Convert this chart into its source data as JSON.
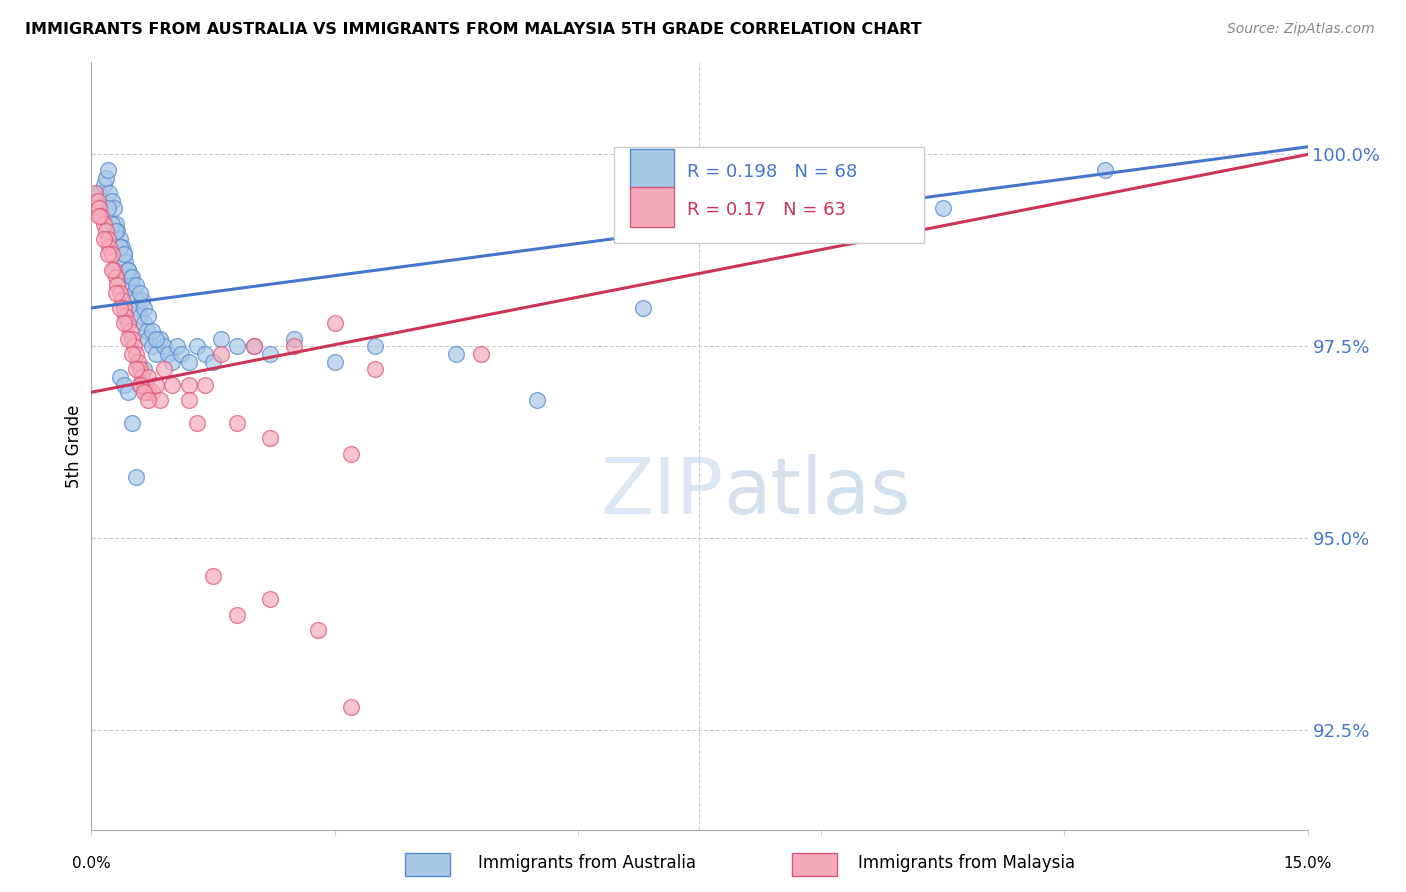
{
  "title": "IMMIGRANTS FROM AUSTRALIA VS IMMIGRANTS FROM MALAYSIA 5TH GRADE CORRELATION CHART",
  "source": "Source: ZipAtlas.com",
  "ylabel": "5th Grade",
  "yticks": [
    92.5,
    95.0,
    97.5,
    100.0
  ],
  "ytick_labels": [
    "92.5%",
    "95.0%",
    "97.5%",
    "100.0%"
  ],
  "xlim": [
    0.0,
    15.0
  ],
  "ylim": [
    91.2,
    101.2
  ],
  "blue_R": 0.198,
  "blue_N": 68,
  "pink_R": 0.17,
  "pink_N": 63,
  "blue_color": "#A8C8E8",
  "pink_color": "#F5AABB",
  "blue_edge_color": "#5588CC",
  "pink_edge_color": "#DD5577",
  "blue_line_color": "#4477CC",
  "pink_line_color": "#CC3355",
  "watermark_zip": "ZIP",
  "watermark_atlas": "atlas",
  "blue_x": [
    0.1,
    0.15,
    0.18,
    0.2,
    0.22,
    0.25,
    0.28,
    0.3,
    0.32,
    0.35,
    0.38,
    0.4,
    0.42,
    0.45,
    0.48,
    0.5,
    0.52,
    0.55,
    0.58,
    0.6,
    0.62,
    0.65,
    0.68,
    0.7,
    0.75,
    0.8,
    0.85,
    0.9,
    0.95,
    1.0,
    1.05,
    1.1,
    1.2,
    1.3,
    1.4,
    1.5,
    1.6,
    1.8,
    2.0,
    2.2,
    2.5,
    3.0,
    3.5,
    4.5,
    5.5,
    6.8,
    10.5,
    12.5,
    0.2,
    0.25,
    0.3,
    0.35,
    0.4,
    0.45,
    0.5,
    0.55,
    0.6,
    0.65,
    0.7,
    0.75,
    0.8,
    0.35,
    0.4,
    0.45,
    0.5,
    0.55,
    0.6,
    0.65
  ],
  "blue_y": [
    99.5,
    99.6,
    99.7,
    99.8,
    99.5,
    99.4,
    99.3,
    99.1,
    99.0,
    98.9,
    98.8,
    98.7,
    98.6,
    98.5,
    98.4,
    98.3,
    98.2,
    98.1,
    98.0,
    97.9,
    98.1,
    97.8,
    97.7,
    97.6,
    97.5,
    97.4,
    97.6,
    97.5,
    97.4,
    97.3,
    97.5,
    97.4,
    97.3,
    97.5,
    97.4,
    97.3,
    97.6,
    97.5,
    97.5,
    97.4,
    97.6,
    97.3,
    97.5,
    97.4,
    96.8,
    98.0,
    99.3,
    99.8,
    99.3,
    99.1,
    99.0,
    98.8,
    98.7,
    98.5,
    98.4,
    98.3,
    98.2,
    98.0,
    97.9,
    97.7,
    97.6,
    97.1,
    97.0,
    96.9,
    96.5,
    95.8,
    97.0,
    97.2
  ],
  "pink_x": [
    0.05,
    0.08,
    0.1,
    0.12,
    0.15,
    0.18,
    0.2,
    0.22,
    0.25,
    0.28,
    0.3,
    0.32,
    0.35,
    0.38,
    0.4,
    0.42,
    0.45,
    0.48,
    0.5,
    0.52,
    0.55,
    0.58,
    0.6,
    0.62,
    0.65,
    0.68,
    0.7,
    0.75,
    0.8,
    0.85,
    0.9,
    1.0,
    1.2,
    1.4,
    1.6,
    2.0,
    2.5,
    3.0,
    3.5,
    4.8,
    0.1,
    0.15,
    0.2,
    0.25,
    0.3,
    0.35,
    0.4,
    0.45,
    0.5,
    0.55,
    0.6,
    0.65,
    0.7,
    1.3,
    1.8,
    2.2,
    3.2,
    1.5,
    2.8,
    1.2,
    1.8,
    2.2,
    3.2
  ],
  "pink_y": [
    99.5,
    99.4,
    99.3,
    99.2,
    99.1,
    99.0,
    98.9,
    98.8,
    98.7,
    98.5,
    98.4,
    98.3,
    98.2,
    98.1,
    98.0,
    97.9,
    97.8,
    97.7,
    97.6,
    97.5,
    97.4,
    97.3,
    97.2,
    97.1,
    97.0,
    96.9,
    97.1,
    96.9,
    97.0,
    96.8,
    97.2,
    97.0,
    97.0,
    97.0,
    97.4,
    97.5,
    97.5,
    97.8,
    97.2,
    97.4,
    99.2,
    98.9,
    98.7,
    98.5,
    98.2,
    98.0,
    97.8,
    97.6,
    97.4,
    97.2,
    97.0,
    96.9,
    96.8,
    96.5,
    94.0,
    94.2,
    92.8,
    94.5,
    93.8,
    96.8,
    96.5,
    96.3,
    96.1
  ],
  "blue_trendline_x": [
    0.0,
    15.0
  ],
  "blue_trendline_y": [
    98.0,
    100.1
  ],
  "pink_trendline_x": [
    0.0,
    15.0
  ],
  "pink_trendline_y": [
    96.9,
    100.0
  ]
}
